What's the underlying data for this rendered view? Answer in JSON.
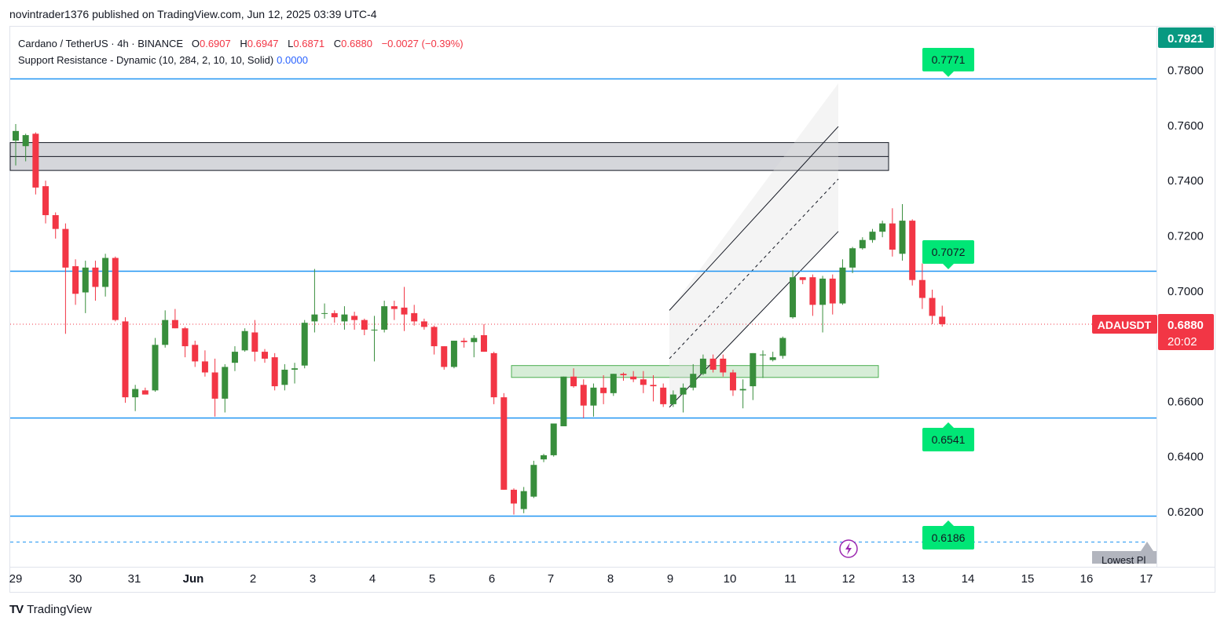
{
  "header": {
    "publish_line": "novintrader1376 published on TradingView.com, Jun 12, 2025 03:39 UTC-4"
  },
  "legend": {
    "symbol_line": "Cardano / TetherUS · 4h · BINANCE",
    "o_label": "O",
    "o_value": "0.6907",
    "h_label": "H",
    "h_value": "0.6947",
    "l_label": "L",
    "l_value": "0.6871",
    "c_label": "C",
    "c_value": "0.6880",
    "change": "−0.0027 (−0.39%)",
    "indicator": "Support Resistance - Dynamic (10, 284, 2, 10, 10, Solid)",
    "indicator_value": "0.0000"
  },
  "footer": {
    "logo_mark": "TV",
    "logo_text": "TradingView"
  },
  "colors": {
    "up": "#388e3c",
    "down": "#f23645",
    "level_line": "#2196f3",
    "label_green": "#00e676",
    "price_tag": "#f23645",
    "top_tag": "#089981"
  },
  "chart_data": {
    "type": "candlestick",
    "symbol": "ADAUSDT",
    "timeframe": "4h",
    "y_axis": {
      "ticks": [
        "0.7800",
        "0.7600",
        "0.7400",
        "0.7200",
        "0.7000",
        "0.6800",
        "0.6600",
        "0.6400",
        "0.6200"
      ],
      "ylim": [
        0.6055,
        0.796
      ]
    },
    "x_axis": {
      "ticks": [
        "29",
        "30",
        "31",
        "Jun",
        "2",
        "3",
        "4",
        "5",
        "6",
        "7",
        "8",
        "9",
        "10",
        "11",
        "12",
        "13",
        "14",
        "15",
        "16",
        "17"
      ]
    },
    "candles": [
      {
        "o": 0.7545,
        "h": 0.7605,
        "l": 0.7455,
        "c": 0.758
      },
      {
        "o": 0.7525,
        "h": 0.757,
        "l": 0.747,
        "c": 0.7565
      },
      {
        "o": 0.757,
        "h": 0.7575,
        "l": 0.735,
        "c": 0.7375
      },
      {
        "o": 0.738,
        "h": 0.74,
        "l": 0.7245,
        "c": 0.7275
      },
      {
        "o": 0.7275,
        "h": 0.7285,
        "l": 0.719,
        "c": 0.7225
      },
      {
        "o": 0.7225,
        "h": 0.7245,
        "l": 0.6845,
        "c": 0.7085
      },
      {
        "o": 0.709,
        "h": 0.7115,
        "l": 0.695,
        "c": 0.699
      },
      {
        "o": 0.6995,
        "h": 0.711,
        "l": 0.692,
        "c": 0.7085
      },
      {
        "o": 0.7085,
        "h": 0.711,
        "l": 0.6965,
        "c": 0.7015
      },
      {
        "o": 0.7015,
        "h": 0.7135,
        "l": 0.698,
        "c": 0.712
      },
      {
        "o": 0.712,
        "h": 0.7125,
        "l": 0.689,
        "c": 0.6895
      },
      {
        "o": 0.689,
        "h": 0.6905,
        "l": 0.6595,
        "c": 0.6615
      },
      {
        "o": 0.6615,
        "h": 0.666,
        "l": 0.6565,
        "c": 0.6645
      },
      {
        "o": 0.664,
        "h": 0.665,
        "l": 0.6625,
        "c": 0.6625
      },
      {
        "o": 0.664,
        "h": 0.683,
        "l": 0.6635,
        "c": 0.6805
      },
      {
        "o": 0.6805,
        "h": 0.693,
        "l": 0.6795,
        "c": 0.6895
      },
      {
        "o": 0.6895,
        "h": 0.6935,
        "l": 0.6865,
        "c": 0.6865
      },
      {
        "o": 0.6865,
        "h": 0.687,
        "l": 0.676,
        "c": 0.68
      },
      {
        "o": 0.6805,
        "h": 0.682,
        "l": 0.6725,
        "c": 0.6745
      },
      {
        "o": 0.6745,
        "h": 0.6785,
        "l": 0.669,
        "c": 0.6705
      },
      {
        "o": 0.6705,
        "h": 0.6755,
        "l": 0.6545,
        "c": 0.661
      },
      {
        "o": 0.661,
        "h": 0.6735,
        "l": 0.656,
        "c": 0.6725
      },
      {
        "o": 0.674,
        "h": 0.68,
        "l": 0.671,
        "c": 0.678
      },
      {
        "o": 0.6785,
        "h": 0.6865,
        "l": 0.678,
        "c": 0.6855
      },
      {
        "o": 0.685,
        "h": 0.6895,
        "l": 0.6745,
        "c": 0.678
      },
      {
        "o": 0.678,
        "h": 0.679,
        "l": 0.674,
        "c": 0.6755
      },
      {
        "o": 0.676,
        "h": 0.6775,
        "l": 0.664,
        "c": 0.6655
      },
      {
        "o": 0.666,
        "h": 0.6735,
        "l": 0.664,
        "c": 0.6715
      },
      {
        "o": 0.6715,
        "h": 0.674,
        "l": 0.6665,
        "c": 0.672
      },
      {
        "o": 0.673,
        "h": 0.6895,
        "l": 0.672,
        "c": 0.6885
      },
      {
        "o": 0.689,
        "h": 0.708,
        "l": 0.685,
        "c": 0.6915
      },
      {
        "o": 0.692,
        "h": 0.6955,
        "l": 0.69,
        "c": 0.692
      },
      {
        "o": 0.692,
        "h": 0.693,
        "l": 0.6885,
        "c": 0.6905
      },
      {
        "o": 0.689,
        "h": 0.6945,
        "l": 0.686,
        "c": 0.6915
      },
      {
        "o": 0.691,
        "h": 0.6925,
        "l": 0.686,
        "c": 0.6895
      },
      {
        "o": 0.6895,
        "h": 0.69,
        "l": 0.684,
        "c": 0.686
      },
      {
        "o": 0.686,
        "h": 0.691,
        "l": 0.6745,
        "c": 0.686
      },
      {
        "o": 0.686,
        "h": 0.6965,
        "l": 0.685,
        "c": 0.6945
      },
      {
        "o": 0.6945,
        "h": 0.6965,
        "l": 0.6895,
        "c": 0.6935
      },
      {
        "o": 0.694,
        "h": 0.7015,
        "l": 0.6855,
        "c": 0.6915
      },
      {
        "o": 0.692,
        "h": 0.695,
        "l": 0.6875,
        "c": 0.689
      },
      {
        "o": 0.689,
        "h": 0.69,
        "l": 0.686,
        "c": 0.687
      },
      {
        "o": 0.687,
        "h": 0.6875,
        "l": 0.677,
        "c": 0.68
      },
      {
        "o": 0.68,
        "h": 0.68,
        "l": 0.6715,
        "c": 0.6725
      },
      {
        "o": 0.6725,
        "h": 0.682,
        "l": 0.672,
        "c": 0.682
      },
      {
        "o": 0.682,
        "h": 0.683,
        "l": 0.6795,
        "c": 0.6815
      },
      {
        "o": 0.6815,
        "h": 0.684,
        "l": 0.676,
        "c": 0.683
      },
      {
        "o": 0.684,
        "h": 0.688,
        "l": 0.678,
        "c": 0.678
      },
      {
        "o": 0.6775,
        "h": 0.678,
        "l": 0.659,
        "c": 0.6615
      },
      {
        "o": 0.6615,
        "h": 0.663,
        "l": 0.628,
        "c": 0.628
      },
      {
        "o": 0.628,
        "h": 0.6285,
        "l": 0.619,
        "c": 0.623
      },
      {
        "o": 0.621,
        "h": 0.629,
        "l": 0.6195,
        "c": 0.6275
      },
      {
        "o": 0.6255,
        "h": 0.6385,
        "l": 0.625,
        "c": 0.637
      },
      {
        "o": 0.639,
        "h": 0.641,
        "l": 0.638,
        "c": 0.6405
      },
      {
        "o": 0.6405,
        "h": 0.652,
        "l": 0.64,
        "c": 0.652
      },
      {
        "o": 0.651,
        "h": 0.669,
        "l": 0.651,
        "c": 0.669
      },
      {
        "o": 0.669,
        "h": 0.672,
        "l": 0.665,
        "c": 0.6655
      },
      {
        "o": 0.666,
        "h": 0.668,
        "l": 0.654,
        "c": 0.6585
      },
      {
        "o": 0.6585,
        "h": 0.6665,
        "l": 0.6545,
        "c": 0.665
      },
      {
        "o": 0.665,
        "h": 0.6695,
        "l": 0.659,
        "c": 0.663
      },
      {
        "o": 0.663,
        "h": 0.67,
        "l": 0.662,
        "c": 0.67
      },
      {
        "o": 0.67,
        "h": 0.6705,
        "l": 0.6675,
        "c": 0.6695
      },
      {
        "o": 0.669,
        "h": 0.671,
        "l": 0.667,
        "c": 0.668
      },
      {
        "o": 0.668,
        "h": 0.671,
        "l": 0.663,
        "c": 0.666
      },
      {
        "o": 0.666,
        "h": 0.6695,
        "l": 0.66,
        "c": 0.6655
      },
      {
        "o": 0.665,
        "h": 0.6665,
        "l": 0.658,
        "c": 0.659
      },
      {
        "o": 0.659,
        "h": 0.664,
        "l": 0.658,
        "c": 0.6625
      },
      {
        "o": 0.6625,
        "h": 0.6665,
        "l": 0.656,
        "c": 0.665
      },
      {
        "o": 0.665,
        "h": 0.6735,
        "l": 0.664,
        "c": 0.67
      },
      {
        "o": 0.67,
        "h": 0.677,
        "l": 0.6695,
        "c": 0.6755
      },
      {
        "o": 0.6755,
        "h": 0.677,
        "l": 0.6705,
        "c": 0.6715
      },
      {
        "o": 0.6755,
        "h": 0.677,
        "l": 0.669,
        "c": 0.6705
      },
      {
        "o": 0.6705,
        "h": 0.6715,
        "l": 0.662,
        "c": 0.664
      },
      {
        "o": 0.664,
        "h": 0.668,
        "l": 0.6575,
        "c": 0.6645
      },
      {
        "o": 0.6655,
        "h": 0.6775,
        "l": 0.6605,
        "c": 0.6775
      },
      {
        "o": 0.677,
        "h": 0.6785,
        "l": 0.6685,
        "c": 0.677
      },
      {
        "o": 0.675,
        "h": 0.678,
        "l": 0.6745,
        "c": 0.676
      },
      {
        "o": 0.6765,
        "h": 0.6835,
        "l": 0.6755,
        "c": 0.683
      },
      {
        "o": 0.6905,
        "h": 0.7075,
        "l": 0.69,
        "c": 0.705
      },
      {
        "o": 0.705,
        "h": 0.705,
        "l": 0.7025,
        "c": 0.704
      },
      {
        "o": 0.705,
        "h": 0.706,
        "l": 0.691,
        "c": 0.695
      },
      {
        "o": 0.695,
        "h": 0.7055,
        "l": 0.685,
        "c": 0.7045
      },
      {
        "o": 0.7045,
        "h": 0.706,
        "l": 0.6915,
        "c": 0.6955
      },
      {
        "o": 0.6955,
        "h": 0.7115,
        "l": 0.695,
        "c": 0.7085
      },
      {
        "o": 0.7085,
        "h": 0.716,
        "l": 0.7065,
        "c": 0.7155
      },
      {
        "o": 0.7155,
        "h": 0.7195,
        "l": 0.715,
        "c": 0.7185
      },
      {
        "o": 0.7185,
        "h": 0.7225,
        "l": 0.7175,
        "c": 0.7215
      },
      {
        "o": 0.7215,
        "h": 0.7255,
        "l": 0.7195,
        "c": 0.7245
      },
      {
        "o": 0.7245,
        "h": 0.73,
        "l": 0.7125,
        "c": 0.715
      },
      {
        "o": 0.7135,
        "h": 0.7315,
        "l": 0.711,
        "c": 0.7255
      },
      {
        "o": 0.7255,
        "h": 0.726,
        "l": 0.702,
        "c": 0.704
      },
      {
        "o": 0.704,
        "h": 0.71,
        "l": 0.6935,
        "c": 0.6975
      },
      {
        "o": 0.6975,
        "h": 0.7005,
        "l": 0.688,
        "c": 0.691
      },
      {
        "o": 0.6907,
        "h": 0.6947,
        "l": 0.6871,
        "c": 0.688
      }
    ],
    "levels": [
      {
        "value": 0.7771,
        "label": "0.7771"
      },
      {
        "value": 0.7072,
        "label": "0.7072"
      },
      {
        "value": 0.6541,
        "label": "0.6541"
      },
      {
        "value": 0.6186,
        "label": "0.6186"
      }
    ],
    "zones": [
      {
        "name": "resistance",
        "from": 0.7437,
        "to": 0.7538
      },
      {
        "name": "support",
        "from": 0.6687,
        "to": 0.673
      }
    ],
    "channel": {
      "upper": [
        [
          0.693,
          0.7596
        ]
      ],
      "lower": [
        [
          0.6579,
          0.7216
        ]
      ],
      "mid": [
        0.6755,
        0.7406
      ]
    },
    "current_price": "0.6880",
    "countdown": "20:02",
    "top_price": "0.7921",
    "lowest_pl_label": "Lowest Pl"
  }
}
